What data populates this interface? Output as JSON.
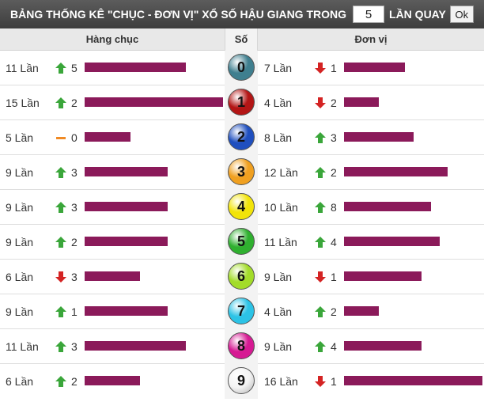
{
  "header": {
    "title_prefix": "BẢNG THỐNG KÊ \"CHỤC - ĐƠN VỊ\" XỔ SỐ HẬU GIANG TRONG",
    "count_value": "5",
    "title_suffix": "LẦN QUAY",
    "ok_label": "Ok"
  },
  "columns": {
    "tens": "Hàng chục",
    "number": "Số",
    "units": "Đơn vị"
  },
  "colors": {
    "bar": "#8b1a5a",
    "up": "#3aa63a",
    "down": "#d42323",
    "flat": "#f08a24"
  },
  "rows": [
    {
      "number": "0",
      "ball": "#3f7f8f",
      "tens": {
        "count": "11 Lần",
        "trend": "up",
        "delta": "5",
        "fraction": 0.73
      },
      "units": {
        "count": "7 Lần",
        "trend": "down",
        "delta": "1",
        "fraction": 0.44
      }
    },
    {
      "number": "1",
      "ball": "#b31515",
      "tens": {
        "count": "15 Lần",
        "trend": "up",
        "delta": "2",
        "fraction": 1.0
      },
      "units": {
        "count": "4 Lần",
        "trend": "down",
        "delta": "2",
        "fraction": 0.25
      }
    },
    {
      "number": "2",
      "ball": "#1f4fbf",
      "tens": {
        "count": "5 Lần",
        "trend": "flat",
        "delta": "0",
        "fraction": 0.33
      },
      "units": {
        "count": "8 Lần",
        "trend": "up",
        "delta": "3",
        "fraction": 0.5
      }
    },
    {
      "number": "3",
      "ball": "#f0a020",
      "tens": {
        "count": "9 Lần",
        "trend": "up",
        "delta": "3",
        "fraction": 0.6
      },
      "units": {
        "count": "12 Lần",
        "trend": "up",
        "delta": "2",
        "fraction": 0.75
      }
    },
    {
      "number": "4",
      "ball": "#f2e40a",
      "tens": {
        "count": "9 Lần",
        "trend": "up",
        "delta": "3",
        "fraction": 0.6
      },
      "units": {
        "count": "10 Lần",
        "trend": "up",
        "delta": "8",
        "fraction": 0.63
      }
    },
    {
      "number": "5",
      "ball": "#2fb02f",
      "tens": {
        "count": "9 Lần",
        "trend": "up",
        "delta": "2",
        "fraction": 0.6
      },
      "units": {
        "count": "11 Lần",
        "trend": "up",
        "delta": "4",
        "fraction": 0.69
      }
    },
    {
      "number": "6",
      "ball": "#a3dc2a",
      "tens": {
        "count": "6 Lần",
        "trend": "down",
        "delta": "3",
        "fraction": 0.4
      },
      "units": {
        "count": "9 Lần",
        "trend": "down",
        "delta": "1",
        "fraction": 0.56
      }
    },
    {
      "number": "7",
      "ball": "#2cc3e6",
      "tens": {
        "count": "9 Lần",
        "trend": "up",
        "delta": "1",
        "fraction": 0.6
      },
      "units": {
        "count": "4 Lần",
        "trend": "up",
        "delta": "2",
        "fraction": 0.25
      }
    },
    {
      "number": "8",
      "ball": "#d61a93",
      "tens": {
        "count": "11 Lần",
        "trend": "up",
        "delta": "3",
        "fraction": 0.73
      },
      "units": {
        "count": "9 Lần",
        "trend": "up",
        "delta": "4",
        "fraction": 0.56
      }
    },
    {
      "number": "9",
      "ball": "#f4f4f4",
      "tens": {
        "count": "6 Lần",
        "trend": "up",
        "delta": "2",
        "fraction": 0.4
      },
      "units": {
        "count": "16 Lần",
        "trend": "down",
        "delta": "1",
        "fraction": 1.0
      }
    }
  ]
}
